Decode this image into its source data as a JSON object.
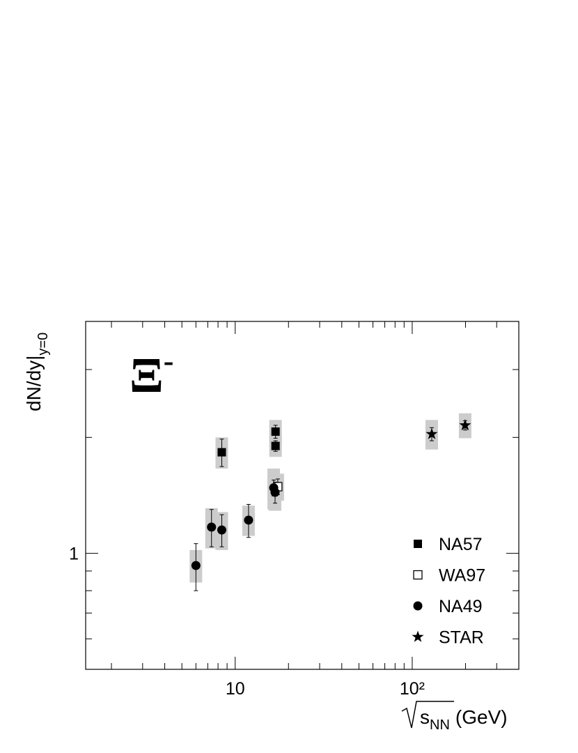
{
  "chart_data": {
    "type": "scatter",
    "annotation": {
      "text": "Ξ",
      "superscript": "-"
    },
    "y_label": {
      "text": "dN/dy|",
      "subscript": "y=0"
    },
    "x_label": {
      "text": "s",
      "subscript": "NN",
      "unit": "(GeV)"
    },
    "xlog": true,
    "ylog": true,
    "xlim": [
      1.43,
      400
    ],
    "ylim": [
      0.5,
      4
    ],
    "xticks": [
      10,
      {
        "value": 100,
        "label": "10²"
      }
    ],
    "xminor_ticks": [
      2,
      3,
      4,
      5,
      6,
      7,
      8,
      9,
      20,
      30,
      40,
      50,
      60,
      70,
      80,
      90,
      200,
      300
    ],
    "yticks": [
      1
    ],
    "yminor_ticks": [
      0.6,
      0.7,
      0.8,
      0.9,
      2,
      3
    ],
    "sys_color": "#cccccc",
    "series": [
      {
        "name": "NA57",
        "marker": "square",
        "color": "#000000",
        "x": [
          8.4,
          16.9,
          16.9
        ],
        "values": [
          1.83,
          2.07,
          1.9
        ],
        "errors": [
          0.15,
          0.08,
          0.06
        ],
        "sys_errors": [
          0.17,
          0.15,
          0.12
        ]
      },
      {
        "name": "WA97",
        "marker": "open-square",
        "color": "#000000",
        "x": [
          17.4
        ],
        "values": [
          1.49
        ],
        "errors": [
          0.07
        ],
        "sys_errors": [
          0.12
        ]
      },
      {
        "name": "NA49",
        "marker": "circle",
        "color": "#000000",
        "x": [
          6.0,
          7.35,
          8.4,
          11.9,
          16.5,
          16.8
        ],
        "values": [
          0.93,
          1.17,
          1.15,
          1.22,
          1.48,
          1.44
        ],
        "errors": [
          0.13,
          0.13,
          0.11,
          0.12,
          0.07,
          0.09
        ],
        "sys_errors": [
          0.09,
          0.14,
          0.13,
          0.11,
          0.18,
          0.15
        ]
      },
      {
        "name": "STAR",
        "marker": "star",
        "color": "#000000",
        "x": [
          128.9,
          199
        ],
        "values": [
          2.04,
          2.15
        ],
        "errors": [
          0.08,
          0.06
        ],
        "sys_errors": [
          0.18,
          0.16
        ]
      }
    ]
  }
}
